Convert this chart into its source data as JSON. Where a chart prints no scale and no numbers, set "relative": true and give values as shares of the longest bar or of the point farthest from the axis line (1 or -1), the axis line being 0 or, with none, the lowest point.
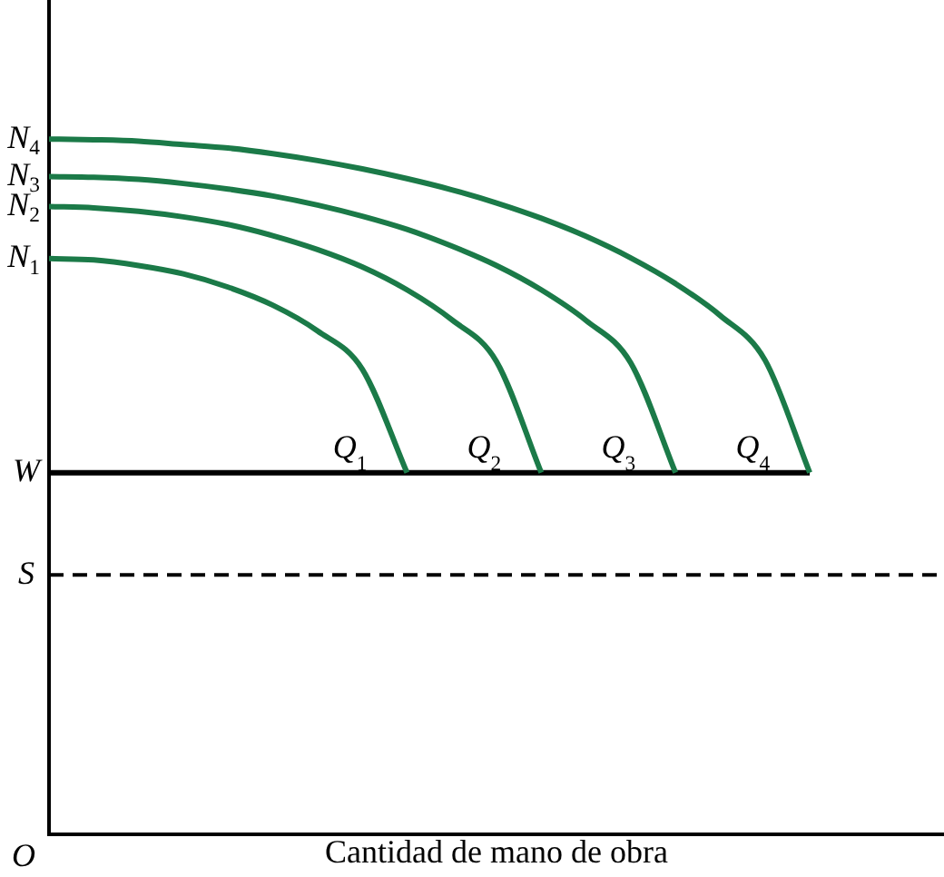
{
  "chart_data": {
    "type": "line",
    "relative": true,
    "xlabel": "Cantidad de mano de obra",
    "tick_labels": false,
    "grid": false,
    "legend": false,
    "marker": "none",
    "categories": [
      null,
      null,
      null,
      null,
      null,
      null,
      null,
      null,
      null,
      null,
      null,
      null,
      null,
      null,
      null,
      null,
      null,
      null,
      null,
      null,
      null
    ],
    "series": [
      {
        "name": "N$_{1}$",
        "color": "#1b7a48",
        "values": [
          0.828,
          0.826,
          0.818,
          0.806,
          0.787,
          0.761,
          0.724,
          0.669,
          0.52,
          null,
          null,
          null,
          null,
          null,
          null,
          null,
          null,
          null,
          null,
          null,
          null
        ]
      },
      {
        "name": "N$_{2}$",
        "color": "#1b7a48",
        "values": [
          0.903,
          0.901,
          0.896,
          0.888,
          0.877,
          0.861,
          0.841,
          0.816,
          0.783,
          0.74,
          0.68,
          0.52,
          null,
          null,
          null,
          null,
          null,
          null,
          null,
          null,
          null
        ]
      },
      {
        "name": "N$_{3}$",
        "color": "#1b7a48",
        "values": [
          0.946,
          0.945,
          0.942,
          0.936,
          0.928,
          0.918,
          0.905,
          0.889,
          0.87,
          0.846,
          0.818,
          0.783,
          0.739,
          0.678,
          0.52,
          null,
          null,
          null,
          null,
          null,
          null
        ]
      },
      {
        "name": "N$_{4}$",
        "color": "#1b7a48",
        "values": [
          1,
          0.999,
          0.997,
          0.992,
          0.987,
          0.979,
          0.969,
          0.957,
          0.943,
          0.927,
          0.908,
          0.886,
          0.86,
          0.829,
          0.792,
          0.746,
          0.682,
          0.52,
          null,
          null,
          null
        ]
      },
      {
        "name": "W",
        "color": "#000000",
        "values": [
          0.52,
          0.52,
          0.52,
          0.52,
          0.52,
          0.52,
          0.52,
          0.52,
          0.52,
          0.52,
          0.52,
          0.52,
          0.52,
          0.52,
          0.52,
          0.52,
          0.52,
          0.52,
          null,
          null,
          null
        ]
      }
    ],
    "ref_lines": [
      {
        "axis": "y",
        "value": 0.373,
        "label": "S",
        "color": "#000000",
        "line_style": "dashed"
      }
    ],
    "annotations": [
      "Q$_{1}$",
      "Q$_{2}$",
      "Q$_{3}$",
      "Q$_{4}$",
      "O"
    ]
  }
}
